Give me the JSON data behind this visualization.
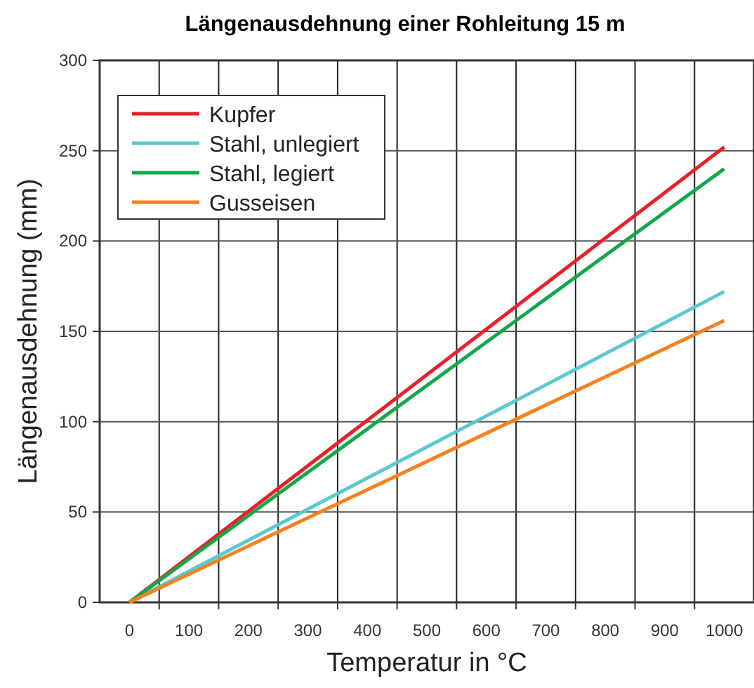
{
  "chart_data": {
    "type": "line",
    "title": "Längenausdehnung einer Rohleitung 15 m",
    "xlabel": "Temperatur in °C",
    "ylabel": "Längenausdehnung (mm)",
    "x": [
      0,
      1000
    ],
    "series": [
      {
        "name": "Kupfer",
        "color": "#e8202a",
        "values": [
          0,
          252
        ]
      },
      {
        "name": "Stahl, unlegiert",
        "color": "#5bc8d0",
        "values": [
          0,
          172
        ]
      },
      {
        "name": "Stahl, legiert",
        "color": "#12a84a",
        "values": [
          0,
          240
        ]
      },
      {
        "name": "Gusseisen",
        "color": "#f5821f",
        "values": [
          0,
          156
        ]
      }
    ],
    "xlim": [
      -50,
      1050
    ],
    "xticks": [
      0,
      {
        "value": 50,
        "label": null
      },
      100,
      {
        "value": 150,
        "label": null
      },
      200,
      {
        "value": 250,
        "label": null
      },
      300,
      {
        "value": 350,
        "label": null
      },
      400,
      {
        "value": 450,
        "label": null
      },
      500,
      {
        "value": 550,
        "label": null
      },
      600,
      {
        "value": 650,
        "label": null
      },
      700,
      {
        "value": 750,
        "label": null
      },
      800,
      {
        "value": 850,
        "label": null
      },
      900,
      {
        "value": 950,
        "label": null
      },
      1000
    ],
    "ylim": [
      0,
      300
    ],
    "yticks": [
      0,
      50,
      100,
      150,
      200,
      250,
      300
    ],
    "grid": true,
    "legend": "top left",
    "marker": "none",
    "line_style": "solid"
  }
}
